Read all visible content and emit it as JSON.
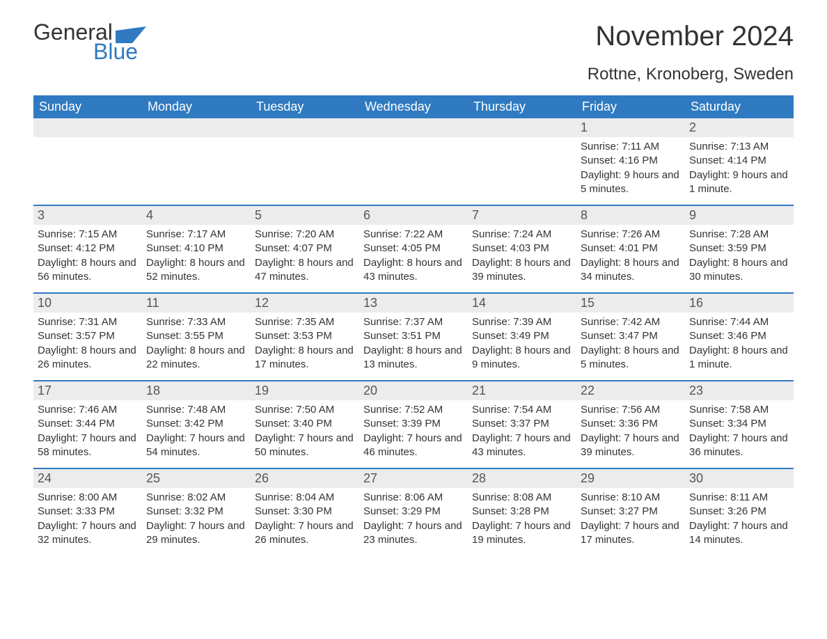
{
  "logo": {
    "text_top": "General",
    "text_bottom": "Blue",
    "accent_color": "#2f7ac0"
  },
  "title": "November 2024",
  "location": "Rottne, Kronoberg, Sweden",
  "colors": {
    "header_bg": "#2f7ac0",
    "header_text": "#ffffff",
    "daynum_bg": "#ececec",
    "rule": "#2f7ac0",
    "body_text": "#333333"
  },
  "weekdays": [
    "Sunday",
    "Monday",
    "Tuesday",
    "Wednesday",
    "Thursday",
    "Friday",
    "Saturday"
  ],
  "weeks": [
    [
      {
        "n": "",
        "sunrise": "",
        "sunset": "",
        "daylight": ""
      },
      {
        "n": "",
        "sunrise": "",
        "sunset": "",
        "daylight": ""
      },
      {
        "n": "",
        "sunrise": "",
        "sunset": "",
        "daylight": ""
      },
      {
        "n": "",
        "sunrise": "",
        "sunset": "",
        "daylight": ""
      },
      {
        "n": "",
        "sunrise": "",
        "sunset": "",
        "daylight": ""
      },
      {
        "n": "1",
        "sunrise": "Sunrise: 7:11 AM",
        "sunset": "Sunset: 4:16 PM",
        "daylight": "Daylight: 9 hours and 5 minutes."
      },
      {
        "n": "2",
        "sunrise": "Sunrise: 7:13 AM",
        "sunset": "Sunset: 4:14 PM",
        "daylight": "Daylight: 9 hours and 1 minute."
      }
    ],
    [
      {
        "n": "3",
        "sunrise": "Sunrise: 7:15 AM",
        "sunset": "Sunset: 4:12 PM",
        "daylight": "Daylight: 8 hours and 56 minutes."
      },
      {
        "n": "4",
        "sunrise": "Sunrise: 7:17 AM",
        "sunset": "Sunset: 4:10 PM",
        "daylight": "Daylight: 8 hours and 52 minutes."
      },
      {
        "n": "5",
        "sunrise": "Sunrise: 7:20 AM",
        "sunset": "Sunset: 4:07 PM",
        "daylight": "Daylight: 8 hours and 47 minutes."
      },
      {
        "n": "6",
        "sunrise": "Sunrise: 7:22 AM",
        "sunset": "Sunset: 4:05 PM",
        "daylight": "Daylight: 8 hours and 43 minutes."
      },
      {
        "n": "7",
        "sunrise": "Sunrise: 7:24 AM",
        "sunset": "Sunset: 4:03 PM",
        "daylight": "Daylight: 8 hours and 39 minutes."
      },
      {
        "n": "8",
        "sunrise": "Sunrise: 7:26 AM",
        "sunset": "Sunset: 4:01 PM",
        "daylight": "Daylight: 8 hours and 34 minutes."
      },
      {
        "n": "9",
        "sunrise": "Sunrise: 7:28 AM",
        "sunset": "Sunset: 3:59 PM",
        "daylight": "Daylight: 8 hours and 30 minutes."
      }
    ],
    [
      {
        "n": "10",
        "sunrise": "Sunrise: 7:31 AM",
        "sunset": "Sunset: 3:57 PM",
        "daylight": "Daylight: 8 hours and 26 minutes."
      },
      {
        "n": "11",
        "sunrise": "Sunrise: 7:33 AM",
        "sunset": "Sunset: 3:55 PM",
        "daylight": "Daylight: 8 hours and 22 minutes."
      },
      {
        "n": "12",
        "sunrise": "Sunrise: 7:35 AM",
        "sunset": "Sunset: 3:53 PM",
        "daylight": "Daylight: 8 hours and 17 minutes."
      },
      {
        "n": "13",
        "sunrise": "Sunrise: 7:37 AM",
        "sunset": "Sunset: 3:51 PM",
        "daylight": "Daylight: 8 hours and 13 minutes."
      },
      {
        "n": "14",
        "sunrise": "Sunrise: 7:39 AM",
        "sunset": "Sunset: 3:49 PM",
        "daylight": "Daylight: 8 hours and 9 minutes."
      },
      {
        "n": "15",
        "sunrise": "Sunrise: 7:42 AM",
        "sunset": "Sunset: 3:47 PM",
        "daylight": "Daylight: 8 hours and 5 minutes."
      },
      {
        "n": "16",
        "sunrise": "Sunrise: 7:44 AM",
        "sunset": "Sunset: 3:46 PM",
        "daylight": "Daylight: 8 hours and 1 minute."
      }
    ],
    [
      {
        "n": "17",
        "sunrise": "Sunrise: 7:46 AM",
        "sunset": "Sunset: 3:44 PM",
        "daylight": "Daylight: 7 hours and 58 minutes."
      },
      {
        "n": "18",
        "sunrise": "Sunrise: 7:48 AM",
        "sunset": "Sunset: 3:42 PM",
        "daylight": "Daylight: 7 hours and 54 minutes."
      },
      {
        "n": "19",
        "sunrise": "Sunrise: 7:50 AM",
        "sunset": "Sunset: 3:40 PM",
        "daylight": "Daylight: 7 hours and 50 minutes."
      },
      {
        "n": "20",
        "sunrise": "Sunrise: 7:52 AM",
        "sunset": "Sunset: 3:39 PM",
        "daylight": "Daylight: 7 hours and 46 minutes."
      },
      {
        "n": "21",
        "sunrise": "Sunrise: 7:54 AM",
        "sunset": "Sunset: 3:37 PM",
        "daylight": "Daylight: 7 hours and 43 minutes."
      },
      {
        "n": "22",
        "sunrise": "Sunrise: 7:56 AM",
        "sunset": "Sunset: 3:36 PM",
        "daylight": "Daylight: 7 hours and 39 minutes."
      },
      {
        "n": "23",
        "sunrise": "Sunrise: 7:58 AM",
        "sunset": "Sunset: 3:34 PM",
        "daylight": "Daylight: 7 hours and 36 minutes."
      }
    ],
    [
      {
        "n": "24",
        "sunrise": "Sunrise: 8:00 AM",
        "sunset": "Sunset: 3:33 PM",
        "daylight": "Daylight: 7 hours and 32 minutes."
      },
      {
        "n": "25",
        "sunrise": "Sunrise: 8:02 AM",
        "sunset": "Sunset: 3:32 PM",
        "daylight": "Daylight: 7 hours and 29 minutes."
      },
      {
        "n": "26",
        "sunrise": "Sunrise: 8:04 AM",
        "sunset": "Sunset: 3:30 PM",
        "daylight": "Daylight: 7 hours and 26 minutes."
      },
      {
        "n": "27",
        "sunrise": "Sunrise: 8:06 AM",
        "sunset": "Sunset: 3:29 PM",
        "daylight": "Daylight: 7 hours and 23 minutes."
      },
      {
        "n": "28",
        "sunrise": "Sunrise: 8:08 AM",
        "sunset": "Sunset: 3:28 PM",
        "daylight": "Daylight: 7 hours and 19 minutes."
      },
      {
        "n": "29",
        "sunrise": "Sunrise: 8:10 AM",
        "sunset": "Sunset: 3:27 PM",
        "daylight": "Daylight: 7 hours and 17 minutes."
      },
      {
        "n": "30",
        "sunrise": "Sunrise: 8:11 AM",
        "sunset": "Sunset: 3:26 PM",
        "daylight": "Daylight: 7 hours and 14 minutes."
      }
    ]
  ]
}
